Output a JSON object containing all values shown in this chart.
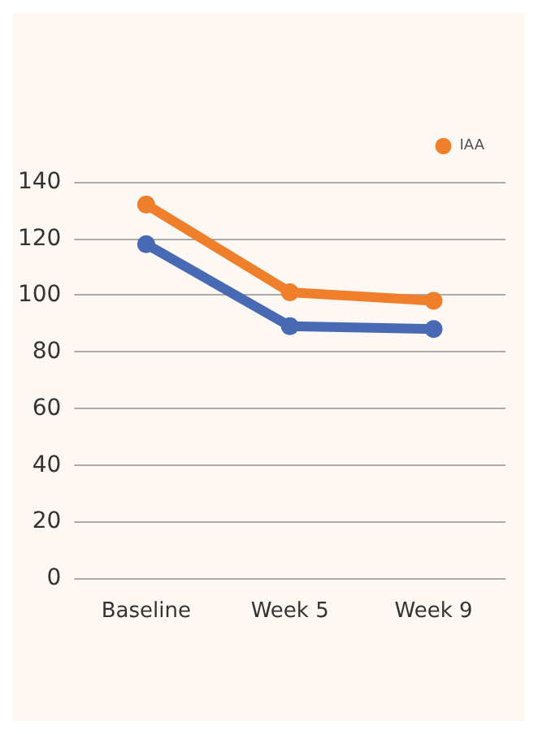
{
  "chart_data": {
    "type": "line",
    "categories": [
      "Baseline",
      "Week 5",
      "Week 9"
    ],
    "series": [
      {
        "color": "#4869b3",
        "values": [
          118,
          89,
          88
        ]
      },
      {
        "name": "IAA",
        "color": "#f07f2c",
        "values": [
          132,
          101,
          98
        ]
      }
    ],
    "ylim": [
      0,
      140
    ],
    "yticks": [
      0,
      20,
      40,
      60,
      80,
      100,
      120,
      140
    ],
    "grid": "y",
    "legend": "top right",
    "marker": "circle",
    "line_style": "solid"
  }
}
